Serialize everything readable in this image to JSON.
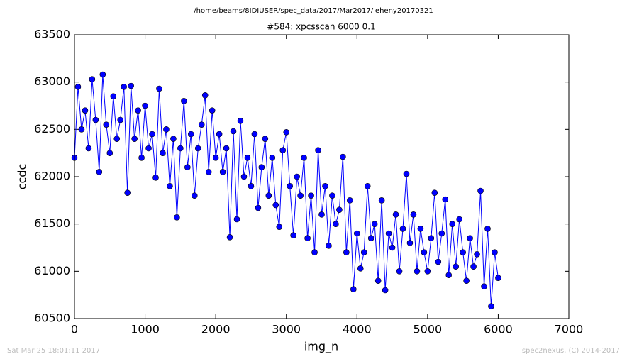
{
  "chart_data": {
    "type": "line",
    "suptitle": "/home/beams/8IDIUSER/spec_data/2017/Mar2017/leheny20170321",
    "title": "#584: xpcsscan 6000 0.1",
    "x_label": "img_n",
    "y_label": "ccdc",
    "footer_left": "Sat Mar 25 18:01:11 2017",
    "footer_right": "spec2nexus, (C) 2014-2017",
    "x": [
      0,
      50,
      100,
      150,
      200,
      250,
      300,
      350,
      400,
      450,
      500,
      550,
      600,
      650,
      700,
      750,
      800,
      850,
      900,
      950,
      1000,
      1050,
      1100,
      1150,
      1200,
      1250,
      1300,
      1350,
      1400,
      1450,
      1500,
      1550,
      1600,
      1650,
      1700,
      1750,
      1800,
      1850,
      1900,
      1950,
      2000,
      2050,
      2100,
      2150,
      2200,
      2250,
      2300,
      2350,
      2400,
      2450,
      2500,
      2550,
      2600,
      2650,
      2700,
      2750,
      2800,
      2850,
      2900,
      2950,
      3000,
      3050,
      3100,
      3150,
      3200,
      3250,
      3300,
      3350,
      3400,
      3450,
      3500,
      3550,
      3600,
      3650,
      3700,
      3750,
      3800,
      3850,
      3900,
      3950,
      4000,
      4050,
      4100,
      4150,
      4200,
      4250,
      4300,
      4350,
      4400,
      4450,
      4500,
      4550,
      4600,
      4650,
      4700,
      4750,
      4800,
      4850,
      4900,
      4950,
      5000,
      5050,
      5100,
      5150,
      5200,
      5250,
      5300,
      5350,
      5400,
      5450,
      5500,
      5550,
      5600,
      5650,
      5700,
      5750,
      5800,
      5850,
      5900,
      5950,
      6000
    ],
    "series": [
      {
        "name": "ccdc",
        "color": "#0000ff",
        "values": [
          62200,
          62950,
          62500,
          62700,
          62300,
          63030,
          62600,
          62050,
          63080,
          62550,
          62250,
          62850,
          62400,
          62600,
          62950,
          61830,
          62960,
          62400,
          62700,
          62200,
          62750,
          62300,
          62450,
          61990,
          62930,
          62250,
          62500,
          61900,
          62400,
          61570,
          62300,
          62800,
          62100,
          62450,
          61800,
          62300,
          62550,
          62860,
          62050,
          62700,
          62200,
          62450,
          62050,
          62300,
          61360,
          62480,
          61550,
          62590,
          62000,
          62200,
          61900,
          62450,
          61670,
          62100,
          62400,
          61800,
          62200,
          61700,
          61470,
          62280,
          62470,
          61900,
          61380,
          62000,
          61800,
          62200,
          61350,
          61800,
          61200,
          62280,
          61600,
          61900,
          61270,
          61800,
          61500,
          61650,
          62210,
          61200,
          61750,
          60810,
          61400,
          61030,
          61200,
          61900,
          61350,
          61500,
          60900,
          61750,
          60800,
          61400,
          61250,
          61600,
          61000,
          61450,
          62030,
          61300,
          61600,
          61000,
          61450,
          61200,
          61000,
          61350,
          61830,
          61100,
          61400,
          61760,
          60960,
          61500,
          61050,
          61550,
          61200,
          60900,
          61350,
          61050,
          61180,
          61850,
          60840,
          61450,
          60630,
          61200,
          60930
        ]
      }
    ],
    "xlim": [
      0,
      7000
    ],
    "xticks": [
      0,
      1000,
      2000,
      3000,
      4000,
      5000,
      6000,
      7000
    ],
    "ylim": [
      60500,
      63500
    ],
    "yticks": [
      60500,
      61000,
      61500,
      62000,
      62500,
      63000,
      63500
    ]
  }
}
